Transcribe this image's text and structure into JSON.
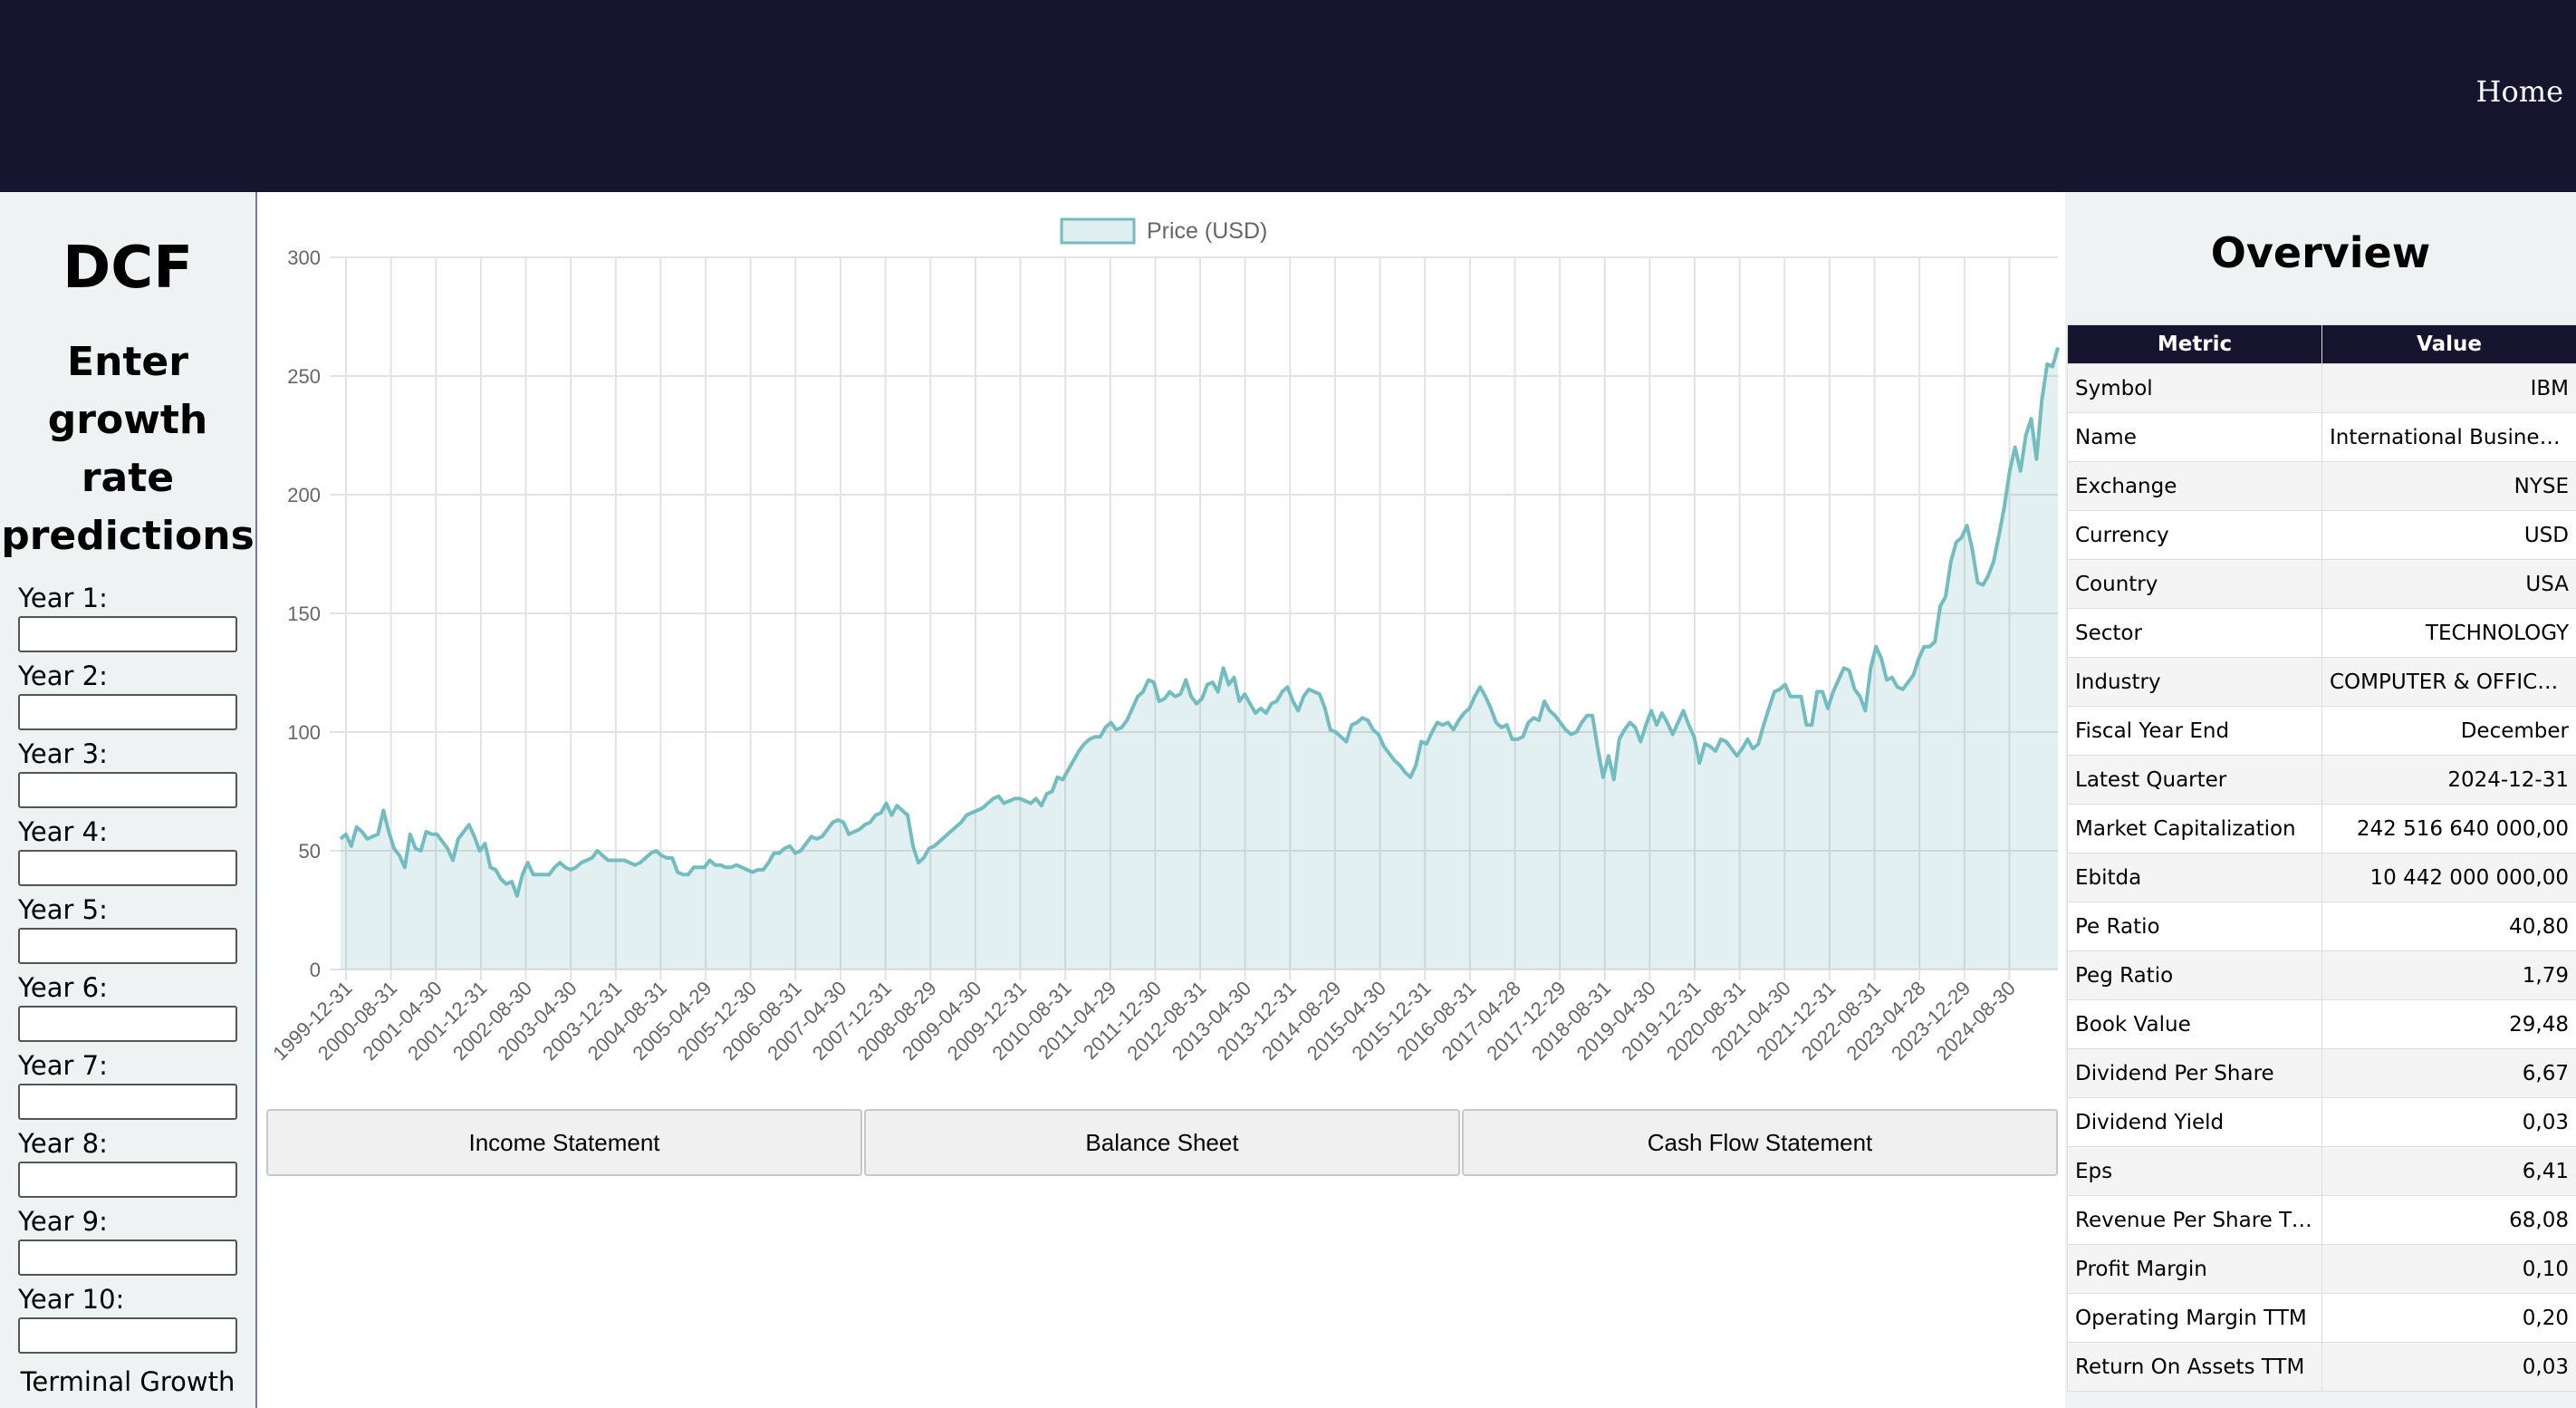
{
  "nav": {
    "home_label": "Home"
  },
  "sidebar": {
    "title": "DCF",
    "subtitle": "Enter growth rate predictions",
    "years": [
      "Year 1:",
      "Year 2:",
      "Year 3:",
      "Year 4:",
      "Year 5:",
      "Year 6:",
      "Year 7:",
      "Year 8:",
      "Year 9:",
      "Year 10:"
    ],
    "terminal_label": "Terminal Growth Rate:"
  },
  "buttons": {
    "income": "Income Statement",
    "balance": "Balance Sheet",
    "cashflow": "Cash Flow Statement"
  },
  "overview": {
    "title": "Overview",
    "headers": [
      "Metric",
      "Value"
    ],
    "rows": [
      [
        "Symbol",
        "IBM"
      ],
      [
        "Name",
        "International Business Machines"
      ],
      [
        "Exchange",
        "NYSE"
      ],
      [
        "Currency",
        "USD"
      ],
      [
        "Country",
        "USA"
      ],
      [
        "Sector",
        "TECHNOLOGY"
      ],
      [
        "Industry",
        "COMPUTER & OFFICE EQUIPMENT"
      ],
      [
        "Fiscal Year End",
        "December"
      ],
      [
        "Latest Quarter",
        "2024-12-31"
      ],
      [
        "Market Capitalization",
        "242 516 640 000,00"
      ],
      [
        "Ebitda",
        "10 442 000 000,00"
      ],
      [
        "Pe Ratio",
        "40,80"
      ],
      [
        "Peg Ratio",
        "1,79"
      ],
      [
        "Book Value",
        "29,48"
      ],
      [
        "Dividend Per Share",
        "6,67"
      ],
      [
        "Dividend Yield",
        "0,03"
      ],
      [
        "Eps",
        "6,41"
      ],
      [
        "Revenue Per Share TTM",
        "68,08"
      ],
      [
        "Profit Margin",
        "0,10"
      ],
      [
        "Operating Margin TTM",
        "0,20"
      ],
      [
        "Return On Assets TTM",
        "0,03"
      ]
    ]
  },
  "chart_data": {
    "type": "area",
    "series_name": "Price (USD)",
    "ylim": [
      0,
      300
    ],
    "yticks": [
      0,
      50,
      100,
      150,
      200,
      250,
      300
    ],
    "xticks": [
      "1999-12-31",
      "2000-08-31",
      "2001-04-30",
      "2001-12-31",
      "2002-08-30",
      "2003-04-30",
      "2003-12-31",
      "2004-08-31",
      "2005-04-29",
      "2005-12-30",
      "2006-08-31",
      "2007-04-30",
      "2007-12-31",
      "2008-08-29",
      "2009-04-30",
      "2009-12-31",
      "2010-08-31",
      "2011-04-29",
      "2011-12-30",
      "2012-08-31",
      "2013-04-30",
      "2013-12-31",
      "2014-08-29",
      "2015-04-30",
      "2015-12-31",
      "2016-08-31",
      "2017-04-28",
      "2017-12-29",
      "2018-08-31",
      "2019-04-30",
      "2019-12-31",
      "2020-08-31",
      "2021-04-30",
      "2021-12-31",
      "2022-08-31",
      "2023-04-28",
      "2023-12-29",
      "2024-08-30"
    ],
    "values": [
      55,
      57,
      52,
      60,
      58,
      55,
      56,
      57,
      67,
      58,
      51,
      48,
      43,
      57,
      51,
      50,
      58,
      57,
      57,
      54,
      51,
      46,
      55,
      58,
      61,
      56,
      50,
      53,
      43,
      42,
      38,
      36,
      37,
      31,
      40,
      45,
      40,
      40,
      40,
      40,
      43,
      45,
      43,
      42,
      43,
      45,
      46,
      47,
      50,
      48,
      46,
      46,
      46,
      46,
      45,
      44,
      45,
      47,
      49,
      50,
      48,
      47,
      47,
      41,
      40,
      40,
      43,
      43,
      43,
      46,
      44,
      44,
      43,
      43,
      44,
      43,
      42,
      41,
      42,
      42,
      45,
      49,
      49,
      51,
      52,
      49,
      50,
      53,
      56,
      55,
      56,
      59,
      62,
      63,
      62,
      57,
      58,
      59,
      61,
      62,
      65,
      66,
      70,
      65,
      69,
      67,
      65,
      52,
      45,
      47,
      51,
      52,
      54,
      56,
      58,
      60,
      62,
      65,
      66,
      67,
      68,
      70,
      72,
      73,
      70,
      71,
      72,
      72,
      71,
      70,
      72,
      69,
      74,
      75,
      81,
      80,
      84,
      88,
      92,
      95,
      97,
      98,
      98,
      102,
      104,
      101,
      102,
      105,
      110,
      115,
      117,
      122,
      121,
      113,
      114,
      117,
      115,
      116,
      122,
      115,
      112,
      114,
      120,
      121,
      117,
      127,
      120,
      123,
      113,
      116,
      112,
      108,
      110,
      108,
      112,
      113,
      117,
      119,
      113,
      109,
      115,
      118,
      117,
      116,
      110,
      101,
      100,
      98,
      96,
      103,
      104,
      106,
      105,
      101,
      99,
      94,
      91,
      88,
      86,
      83,
      81,
      86,
      96,
      95,
      100,
      104,
      103,
      104,
      101,
      105,
      108,
      110,
      115,
      119,
      115,
      110,
      104,
      102,
      103,
      97,
      97,
      98,
      104,
      106,
      105,
      113,
      109,
      107,
      104,
      101,
      99,
      100,
      104,
      107,
      107,
      93,
      81,
      90,
      80,
      97,
      101,
      104,
      102,
      96,
      103,
      109,
      103,
      108,
      104,
      99,
      104,
      109,
      103,
      98,
      87,
      95,
      94,
      92,
      97,
      96,
      93,
      90,
      93,
      97,
      93,
      95,
      103,
      110,
      117,
      118,
      120,
      115,
      115,
      115,
      103,
      103,
      117,
      117,
      110,
      117,
      122,
      127,
      126,
      118,
      115,
      109,
      127,
      136,
      131,
      122,
      123,
      119,
      118,
      121,
      124,
      131,
      136,
      136,
      138,
      153,
      157,
      172,
      180,
      182,
      187,
      177,
      163,
      162,
      166,
      172,
      183,
      195,
      210,
      220,
      210,
      225,
      232,
      215,
      240,
      255,
      254,
      262
    ]
  }
}
